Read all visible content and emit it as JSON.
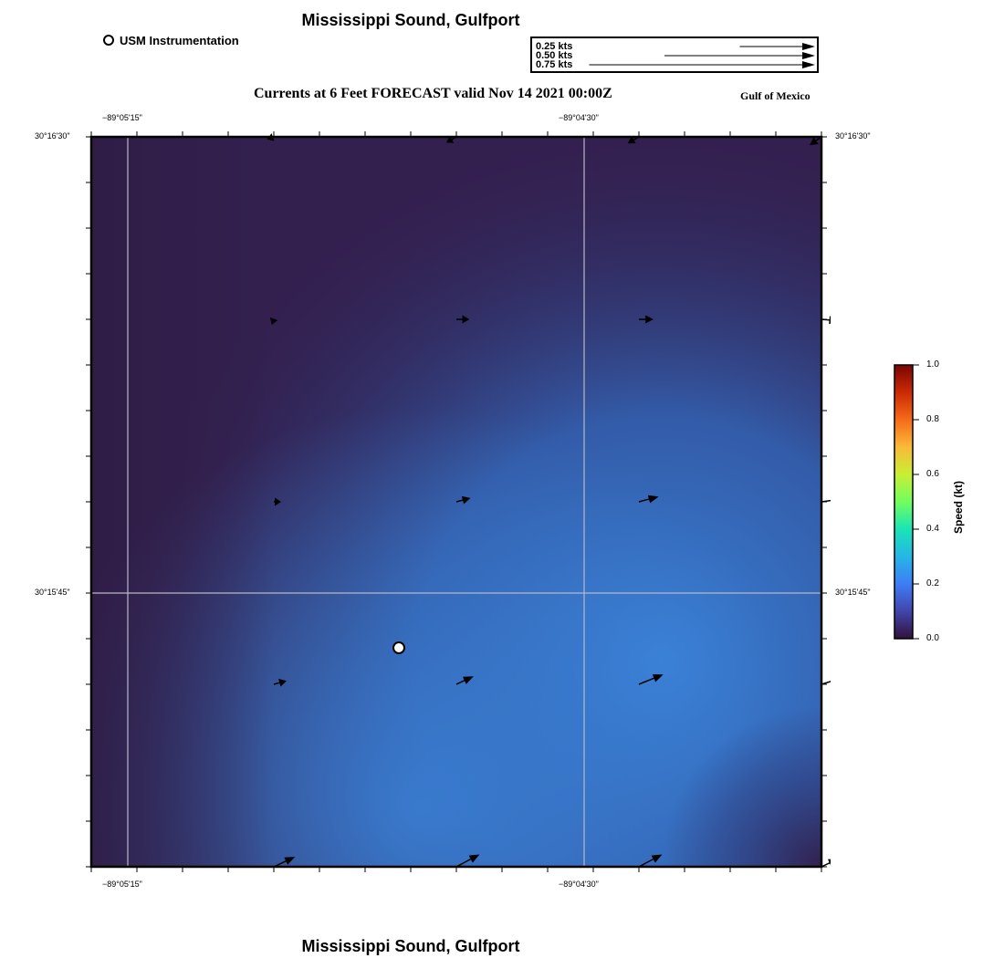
{
  "header": {
    "title": "Mississippi Sound, Gulfport"
  },
  "footer": {
    "title": "Mississippi Sound, Gulfport"
  },
  "legend": {
    "station_label": "USM Instrumentation"
  },
  "vector_scale": {
    "rows": [
      "0.25 kts",
      "0.50 kts",
      "0.75 kts"
    ],
    "lengths_kts": [
      0.25,
      0.5,
      0.75
    ]
  },
  "map": {
    "subtitle": "Currents at 6 Feet FORECAST valid Nov 14 2021 00:00Z",
    "region_label": "Gulf of Mexico",
    "lon_labels": [
      "−89°05'15\"",
      "−89°04'30\""
    ],
    "lat_labels": [
      "30°16'30\"",
      "30°15'45\""
    ],
    "colors": {
      "frame": "#000000",
      "grid": "#b8b8c8",
      "station": "#ffffff",
      "arrow": "#000000"
    }
  },
  "colorbar": {
    "label": "Speed (kt)",
    "ticks": [
      "1.0",
      "0.8",
      "0.6",
      "0.4",
      "0.2",
      "0.0"
    ],
    "range": [
      0.0,
      1.0
    ],
    "colormap": "turbo"
  },
  "field": {
    "description_units": "kt",
    "arrows": [
      {
        "speed": 0.05,
        "dir_deg": 200
      },
      {
        "speed": 0.08,
        "dir_deg": 210
      },
      {
        "speed": 0.09,
        "dir_deg": 210
      },
      {
        "speed": 0.1,
        "dir_deg": 215
      },
      {
        "speed": 0.04,
        "dir_deg": 250
      },
      {
        "speed": 0.09,
        "dir_deg": 0
      },
      {
        "speed": 0.1,
        "dir_deg": 0
      },
      {
        "speed": 0.12,
        "dir_deg": 355
      },
      {
        "speed": 0.05,
        "dir_deg": 0
      },
      {
        "speed": 0.1,
        "dir_deg": 15
      },
      {
        "speed": 0.14,
        "dir_deg": 15
      },
      {
        "speed": 0.19,
        "dir_deg": 8
      },
      {
        "speed": 0.09,
        "dir_deg": 15
      },
      {
        "speed": 0.13,
        "dir_deg": 25
      },
      {
        "speed": 0.18,
        "dir_deg": 22
      },
      {
        "speed": 0.22,
        "dir_deg": 17
      },
      {
        "speed": 0.16,
        "dir_deg": 25
      },
      {
        "speed": 0.18,
        "dir_deg": 28
      },
      {
        "speed": 0.18,
        "dir_deg": 28
      },
      {
        "speed": 0.13,
        "dir_deg": 25
      }
    ]
  }
}
